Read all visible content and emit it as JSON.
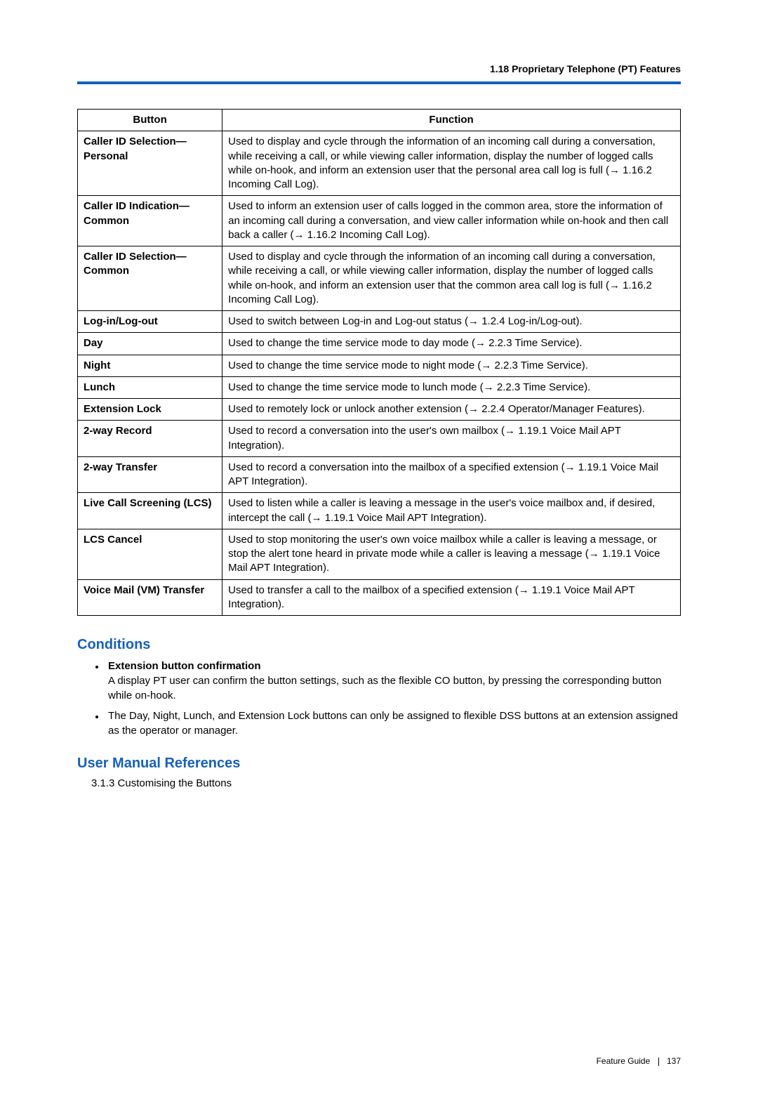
{
  "header": "1.18 Proprietary Telephone (PT) Features",
  "table": {
    "col1": "Button",
    "col2": "Function",
    "rows": [
      {
        "button": "Caller ID Selection—Personal",
        "func": "Used to display and cycle through the information of an incoming call during a conversation, while receiving a call, or while viewing caller information, display the number of logged calls while on-hook, and inform an extension user that the personal area call log is full (→ 1.16.2 Incoming Call Log)."
      },
      {
        "button": "Caller ID Indication—Common",
        "func": "Used to inform an extension user of calls logged in the common area, store the information of an incoming call during a conversation, and view caller information while on-hook and then call back a caller (→ 1.16.2 Incoming Call Log)."
      },
      {
        "button": "Caller ID Selection—Common",
        "func": "Used to display and cycle through the information of an incoming call during a conversation, while receiving a call, or while viewing caller information, display the number of logged calls while on-hook, and inform an extension user that the common area call log is full (→ 1.16.2 Incoming Call Log)."
      },
      {
        "button": "Log-in/Log-out",
        "func": "Used to switch between Log-in and Log-out status (→ 1.2.4 Log-in/Log-out)."
      },
      {
        "button": "Day",
        "func": "Used to change the time service mode to day mode (→ 2.2.3 Time Service)."
      },
      {
        "button": "Night",
        "func": "Used to change the time service mode to night mode (→ 2.2.3 Time Service)."
      },
      {
        "button": "Lunch",
        "func": "Used to change the time service mode to lunch mode (→ 2.2.3 Time Service)."
      },
      {
        "button": "Extension Lock",
        "func": "Used to remotely lock or unlock another extension (→ 2.2.4 Operator/Manager Features)."
      },
      {
        "button": "2-way Record",
        "func": "Used to record a conversation into the user's own mailbox (→ 1.19.1 Voice Mail APT Integration)."
      },
      {
        "button": "2-way Transfer",
        "func": "Used to record a conversation into the mailbox of a specified extension (→ 1.19.1 Voice Mail APT Integration)."
      },
      {
        "button": "Live Call Screening (LCS)",
        "func": "Used to listen while a caller is leaving a message in the user's voice mailbox and, if desired, intercept the call (→ 1.19.1 Voice Mail APT Integration)."
      },
      {
        "button": "LCS Cancel",
        "func": "Used to stop monitoring the user's own voice mailbox while a caller is leaving a message, or stop the alert tone heard in private mode while a caller is leaving a message (→ 1.19.1 Voice Mail APT Integration)."
      },
      {
        "button": "Voice Mail (VM) Transfer",
        "func": "Used to transfer a call to the mailbox of a specified extension (→ 1.19.1 Voice Mail APT Integration)."
      }
    ]
  },
  "conditions": {
    "title": "Conditions",
    "items": [
      {
        "heading": "Extension button confirmation",
        "body": "A display PT user can confirm the button settings, such as the flexible CO button, by pressing the corresponding button while on-hook."
      },
      {
        "heading": "",
        "body": "The Day, Night, Lunch, and Extension Lock buttons can only be assigned to flexible DSS buttons at an extension assigned as the operator or manager."
      }
    ]
  },
  "umr": {
    "title": "User Manual References",
    "line": "3.1.3 Customising the Buttons"
  },
  "footer": {
    "label": "Feature Guide",
    "page": "137"
  }
}
